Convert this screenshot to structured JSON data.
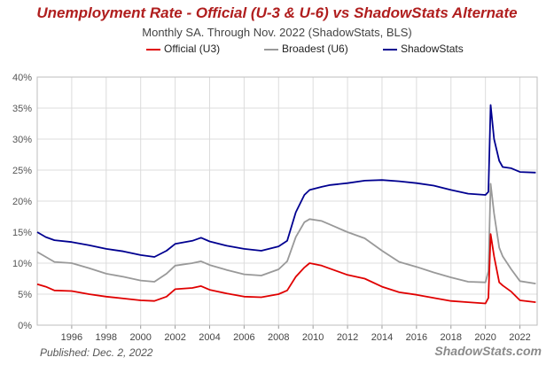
{
  "chart_data": {
    "type": "line",
    "title": "Unemployment Rate - Official (U-3 & U-6) vs ShadowStats Alternate",
    "subtitle": "Monthly SA. Through Nov. 2022  (ShadowStats, BLS)",
    "xlabel": "",
    "ylabel": "",
    "xlim": [
      1994,
      2023
    ],
    "ylim": [
      0,
      40
    ],
    "yticks": [
      "0%",
      "5%",
      "10%",
      "15%",
      "20%",
      "25%",
      "30%",
      "35%",
      "40%"
    ],
    "xticks": [
      "1996",
      "1998",
      "2000",
      "2002",
      "2004",
      "2006",
      "2008",
      "2010",
      "2012",
      "2014",
      "2016",
      "2018",
      "2020",
      "2022"
    ],
    "grid": true,
    "legend_position": "top",
    "series": [
      {
        "name": "Official (U3)",
        "color": "#e00000",
        "x": [
          1994.0,
          1994.5,
          1995.0,
          1996.0,
          1997.0,
          1998.0,
          1999.0,
          2000.0,
          2000.8,
          2001.5,
          2002.0,
          2003.0,
          2003.5,
          2004.0,
          2005.0,
          2006.0,
          2007.0,
          2008.0,
          2008.5,
          2009.0,
          2009.5,
          2009.8,
          2010.5,
          2011.0,
          2012.0,
          2013.0,
          2014.0,
          2015.0,
          2016.0,
          2017.0,
          2018.0,
          2019.0,
          2020.0,
          2020.17,
          2020.3,
          2020.5,
          2020.8,
          2021.0,
          2021.5,
          2022.0,
          2022.92
        ],
        "y": [
          6.6,
          6.2,
          5.6,
          5.5,
          5.0,
          4.6,
          4.3,
          4.0,
          3.9,
          4.6,
          5.8,
          6.0,
          6.3,
          5.7,
          5.1,
          4.6,
          4.5,
          5.0,
          5.6,
          7.8,
          9.3,
          10.0,
          9.6,
          9.1,
          8.1,
          7.5,
          6.2,
          5.3,
          4.9,
          4.4,
          3.9,
          3.7,
          3.5,
          4.4,
          14.7,
          11.1,
          6.9,
          6.4,
          5.4,
          4.0,
          3.7
        ]
      },
      {
        "name": "Broadest (U6)",
        "color": "#999999",
        "x": [
          1994.0,
          1994.5,
          1995.0,
          1996.0,
          1997.0,
          1998.0,
          1999.0,
          2000.0,
          2000.8,
          2001.5,
          2002.0,
          2003.0,
          2003.5,
          2004.0,
          2005.0,
          2006.0,
          2007.0,
          2008.0,
          2008.5,
          2009.0,
          2009.5,
          2009.8,
          2010.5,
          2011.0,
          2012.0,
          2013.0,
          2014.0,
          2015.0,
          2016.0,
          2017.0,
          2018.0,
          2019.0,
          2020.0,
          2020.17,
          2020.3,
          2020.5,
          2020.8,
          2021.0,
          2021.5,
          2022.0,
          2022.92
        ],
        "y": [
          11.8,
          11.0,
          10.2,
          10.0,
          9.2,
          8.3,
          7.8,
          7.2,
          7.0,
          8.3,
          9.6,
          10.0,
          10.3,
          9.7,
          8.9,
          8.2,
          8.0,
          9.0,
          10.3,
          14.2,
          16.6,
          17.1,
          16.8,
          16.2,
          15.0,
          14.0,
          12.0,
          10.2,
          9.4,
          8.5,
          7.7,
          7.0,
          6.9,
          8.7,
          22.8,
          18.0,
          12.5,
          11.1,
          9.0,
          7.1,
          6.7
        ]
      },
      {
        "name": "ShadowStats",
        "color": "#000090",
        "x": [
          1994.0,
          1994.5,
          1995.0,
          1996.0,
          1997.0,
          1998.0,
          1999.0,
          2000.0,
          2000.8,
          2001.5,
          2002.0,
          2003.0,
          2003.5,
          2004.0,
          2005.0,
          2006.0,
          2007.0,
          2008.0,
          2008.5,
          2009.0,
          2009.5,
          2009.8,
          2010.5,
          2011.0,
          2012.0,
          2013.0,
          2014.0,
          2015.0,
          2016.0,
          2017.0,
          2018.0,
          2019.0,
          2020.0,
          2020.17,
          2020.3,
          2020.5,
          2020.8,
          2021.0,
          2021.5,
          2022.0,
          2022.92
        ],
        "y": [
          15.0,
          14.2,
          13.7,
          13.4,
          12.9,
          12.3,
          11.9,
          11.3,
          11.0,
          12.0,
          13.1,
          13.6,
          14.1,
          13.5,
          12.8,
          12.3,
          12.0,
          12.7,
          13.6,
          18.2,
          21.0,
          21.8,
          22.3,
          22.6,
          22.9,
          23.3,
          23.4,
          23.2,
          22.9,
          22.5,
          21.8,
          21.2,
          21.0,
          21.5,
          35.5,
          30.0,
          26.5,
          25.5,
          25.3,
          24.7,
          24.6
        ]
      }
    ]
  },
  "footer": {
    "published": "Published: Dec. 2, 2022",
    "brand": "ShadowStats.com"
  }
}
